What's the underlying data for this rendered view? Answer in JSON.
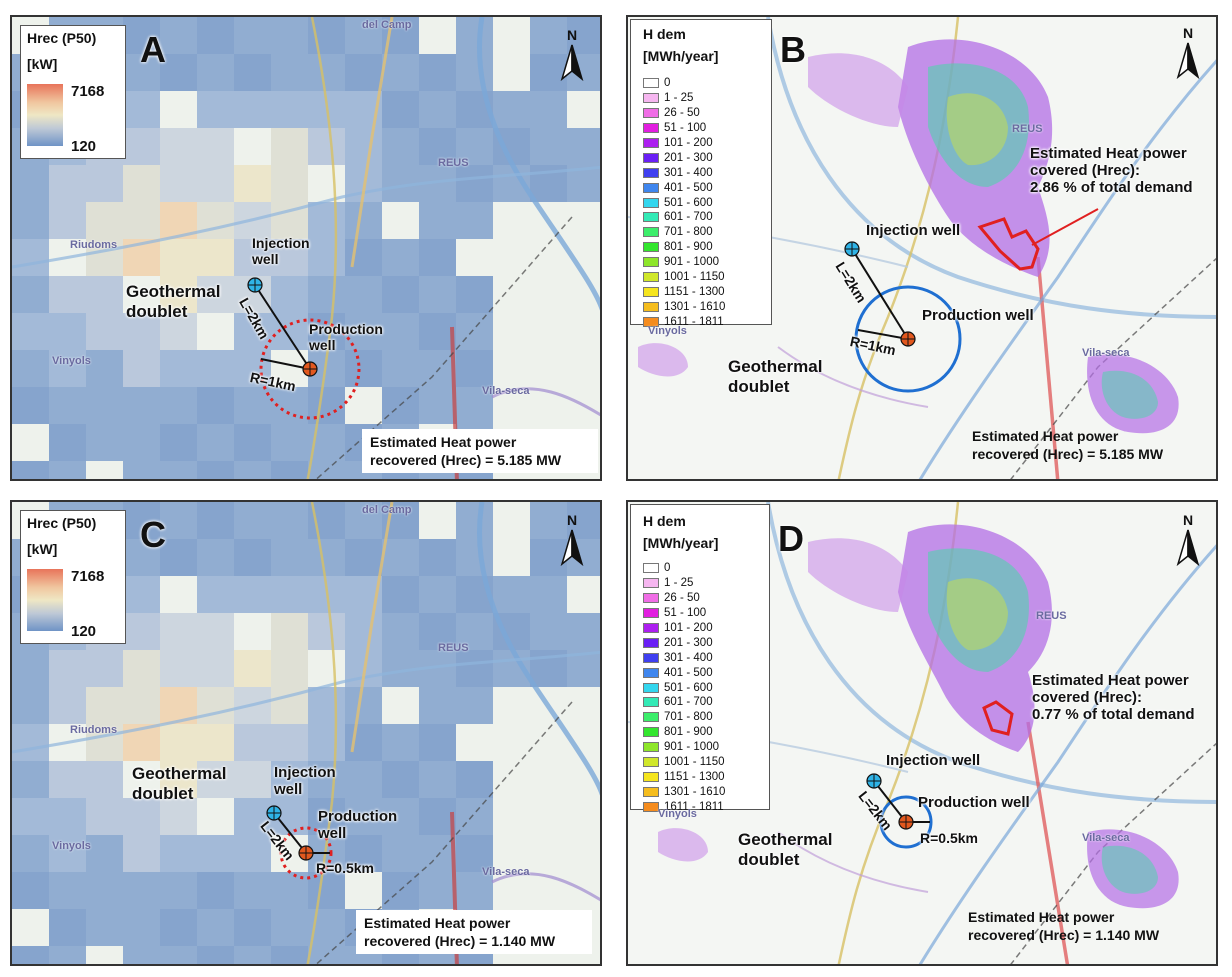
{
  "legend_hrec": {
    "title": "Hrec (P50)",
    "unit": "[kW]",
    "max": "7168",
    "min": "120"
  },
  "legend_hdem": {
    "title_line1": "H dem",
    "title_line2": "[MWh/year]",
    "classes": [
      {
        "label": "0",
        "color": "#ffffff"
      },
      {
        "label": "1 - 25",
        "color": "#f6b6f0"
      },
      {
        "label": "26 - 50",
        "color": "#f06de6"
      },
      {
        "label": "51 - 100",
        "color": "#e21ee0"
      },
      {
        "label": "101 - 200",
        "color": "#ad1ff0"
      },
      {
        "label": "201 - 300",
        "color": "#6a1ff5"
      },
      {
        "label": "301 - 400",
        "color": "#3f3ff0"
      },
      {
        "label": "401 - 500",
        "color": "#3f86ee"
      },
      {
        "label": "501 - 600",
        "color": "#33d6ee"
      },
      {
        "label": "601 - 700",
        "color": "#33eab6"
      },
      {
        "label": "701 - 800",
        "color": "#3cee6b"
      },
      {
        "label": "801 - 900",
        "color": "#33e62e"
      },
      {
        "label": "901 - 1000",
        "color": "#8ee62a"
      },
      {
        "label": "1001 - 1150",
        "color": "#d0e72a"
      },
      {
        "label": "1151 - 1300",
        "color": "#f5e51e"
      },
      {
        "label": "1301 - 1610",
        "color": "#f5bd1e"
      },
      {
        "label": "1611 - 1811",
        "color": "#f58c1e"
      }
    ]
  },
  "common": {
    "north": "N",
    "injection_well": "Injection well",
    "injection_line1": "Injection",
    "injection_line2": "well",
    "production_well": "Production well",
    "production_line1": "Production",
    "production_line2": "well",
    "geo_line1": "Geothermal",
    "geo_line2": "doublet",
    "result_line1": "Estimated Heat power",
    "covered_line1": "Estimated Heat power",
    "covered_line2": "covered (Hrec):",
    "distance_L": "L=2km"
  },
  "places": {
    "reus": "REUS",
    "vila_seca": "Vila-seca",
    "vinyols": "Vinyols",
    "riudoms": "Riudoms",
    "del_camp": "del Camp"
  },
  "panels": {
    "a": {
      "letter": "A",
      "radius_label": "R=1km",
      "result_line2": "recovered (Hrec) = 5.185 MW"
    },
    "b": {
      "letter": "B",
      "radius_label": "R=1km",
      "result_line2": "recovered (Hrec) = 5.185 MW",
      "demand_share": "2.86 % of total demand"
    },
    "c": {
      "letter": "C",
      "radius_label": "R=0.5km",
      "result_line2": "recovered (Hrec) = 1.140 MW"
    },
    "d": {
      "letter": "D",
      "radius_label": "R=0.5km",
      "result_line2": "recovered (Hrec) = 1.140 MW",
      "demand_share": "0.77 % of total demand"
    }
  },
  "colors": {
    "injection_well": "#2fb3e6",
    "production_well": "#e2581e",
    "capture_zone_hrec": "#e02020",
    "capture_zone_hdem": "#1f6fd1",
    "district_outline": "#e02020"
  }
}
